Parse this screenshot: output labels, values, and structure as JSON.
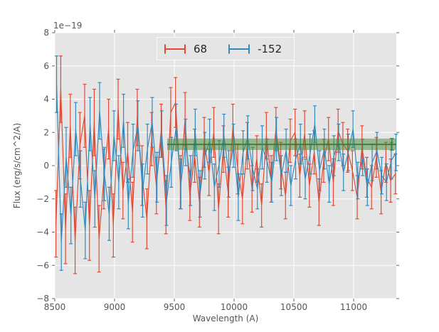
{
  "axes": {
    "bg": "#e5e5e5",
    "grid_color": "#ffffff",
    "tick_color": "#666666",
    "label_color": "#555555",
    "x_ticks": [
      {
        "v": 8500,
        "label": "8500"
      },
      {
        "v": 9000,
        "label": "9000"
      },
      {
        "v": 9500,
        "label": "9500"
      },
      {
        "v": 10000,
        "label": "10000"
      },
      {
        "v": 10500,
        "label": "10500"
      },
      {
        "v": 11000,
        "label": "11000"
      }
    ],
    "y_ticks": [
      {
        "v": 8,
        "label": "8"
      },
      {
        "v": 6,
        "label": "6"
      },
      {
        "v": 4,
        "label": "4"
      },
      {
        "v": 2,
        "label": "2"
      },
      {
        "v": 0,
        "label": "0"
      },
      {
        "v": -2,
        "label": "−2"
      },
      {
        "v": -4,
        "label": "−4"
      },
      {
        "v": -6,
        "label": "−6"
      },
      {
        "v": -8,
        "label": "−8"
      }
    ]
  },
  "chart_data": {
    "type": "line",
    "title": "",
    "xlabel": "Wavelength (A)",
    "ylabel": "Flux (erg/s/cm^2/A)",
    "offset_text": "1e−19",
    "xlim": [
      8500,
      11357
    ],
    "ylim": [
      -8,
      8
    ],
    "grid": true,
    "legend_position": "upper center",
    "series": [
      {
        "name": "68",
        "style": "errorbar-line",
        "color": "#e24a33",
        "x_start": 8510,
        "x_step": 40,
        "y": [
          -3.5,
          4.6,
          -3.8,
          2.4,
          -4.5,
          1.2,
          3.0,
          -3.6,
          2.6,
          -4.4,
          -0.8,
          2.2,
          -3.6,
          3.4,
          -1.5,
          0.8,
          -2.8,
          2.9,
          -0.6,
          -3.2,
          1.6,
          -1.2,
          2.1,
          -2.5,
          3.2,
          3.8,
          -1.0,
          2.8,
          -1.8,
          0.6,
          -2.2,
          1.4,
          -0.4,
          2.0,
          -2.6,
          1.0,
          -1.6,
          2.3,
          -0.2,
          -2.0,
          1.2,
          -1.4,
          0.4,
          -2.4,
          1.8,
          -0.8,
          2.2,
          0.0,
          -1.8,
          1.5,
          2.0,
          -0.6,
          1.9,
          -1.2,
          0.8,
          -2.2,
          0.3,
          1.6,
          -1.0,
          2.1,
          1.3,
          0.9,
          -0.3,
          -1.9,
          1.1,
          -0.7,
          -1.3,
          0.5,
          -1.6,
          0.2,
          -0.9,
          -0.5
        ],
        "yerr": [
          2.0,
          2.0,
          2.1,
          1.9,
          2.0,
          2.0,
          1.9,
          2.1,
          2.0,
          2.0,
          1.8,
          1.8,
          1.9,
          1.8,
          1.7,
          1.8,
          1.8,
          1.7,
          1.8,
          1.8,
          1.6,
          1.7,
          1.6,
          1.6,
          1.5,
          1.5,
          1.6,
          1.6,
          1.5,
          1.6,
          1.5,
          1.5,
          1.4,
          1.5,
          1.5,
          1.4,
          1.5,
          1.4,
          1.5,
          1.5,
          1.4,
          1.4,
          1.4,
          1.3,
          1.4,
          1.4,
          1.3,
          1.4,
          1.4,
          1.3,
          1.4,
          1.3,
          1.4,
          1.3,
          1.3,
          1.4,
          1.3,
          1.3,
          1.4,
          1.3,
          1.3,
          1.3,
          1.2,
          1.3,
          1.3,
          1.2,
          1.3,
          1.2,
          1.3,
          1.2,
          1.3,
          1.2
        ]
      },
      {
        "name": "-152",
        "style": "errorbar-line",
        "color": "#348abd",
        "x_start": 8515,
        "x_step": 40,
        "y": [
          4.9,
          -4.6,
          0.5,
          -3.0,
          2.2,
          -0.8,
          -3.9,
          2.5,
          -2.0,
          3.3,
          -0.5,
          -2.9,
          1.8,
          -1.0,
          2.7,
          -2.3,
          0.9,
          2.4,
          -1.5,
          1.0,
          2.6,
          -0.7,
          1.9,
          -2.1,
          0.2,
          2.3,
          -1.1,
          1.4,
          -0.9,
          2.0,
          -1.7,
          0.6,
          1.5,
          -1.3,
          0.1,
          1.8,
          -0.5,
          1.2,
          -1.9,
          0.8,
          1.7,
          -0.2,
          -1.4,
          1.1,
          0.3,
          -1.0,
          1.6,
          -0.6,
          0.9,
          -1.2,
          0.4,
          1.3,
          -0.8,
          0.7,
          2.5,
          -0.3,
          1.0,
          -1.1,
          0.6,
          1.4,
          -0.4,
          0.8,
          2.2,
          -0.9,
          0.5,
          -1.3,
          0.2,
          0.9,
          -0.6,
          -1.0,
          0.3,
          0.8
        ],
        "yerr": [
          1.7,
          1.7,
          1.8,
          1.7,
          1.6,
          1.7,
          1.7,
          1.6,
          1.7,
          1.7,
          1.6,
          1.6,
          1.5,
          1.6,
          1.6,
          1.5,
          1.6,
          1.5,
          1.6,
          1.5,
          1.5,
          1.5,
          1.4,
          1.5,
          1.5,
          1.4,
          1.5,
          1.4,
          1.5,
          1.4,
          1.4,
          1.4,
          1.3,
          1.4,
          1.4,
          1.3,
          1.4,
          1.3,
          1.4,
          1.3,
          1.3,
          1.3,
          1.2,
          1.3,
          1.3,
          1.2,
          1.3,
          1.2,
          1.3,
          1.2,
          1.2,
          1.2,
          1.2,
          1.2,
          1.1,
          1.2,
          1.2,
          1.1,
          1.2,
          1.1,
          1.1,
          1.1,
          1.1,
          1.1,
          1.1,
          1.1,
          1.1,
          1.1,
          1.1,
          1.1,
          1.1,
          1.1
        ]
      },
      {
        "name": "band",
        "type": "band",
        "x_range": [
          9440,
          11357
        ],
        "lower": 0.94,
        "upper": 1.63,
        "center": 1.28,
        "end_errorbar_x": 11320,
        "fill": "rgba(70,140,60,0.5)",
        "line_color": "rgba(58,118,48,0.85)"
      }
    ]
  }
}
